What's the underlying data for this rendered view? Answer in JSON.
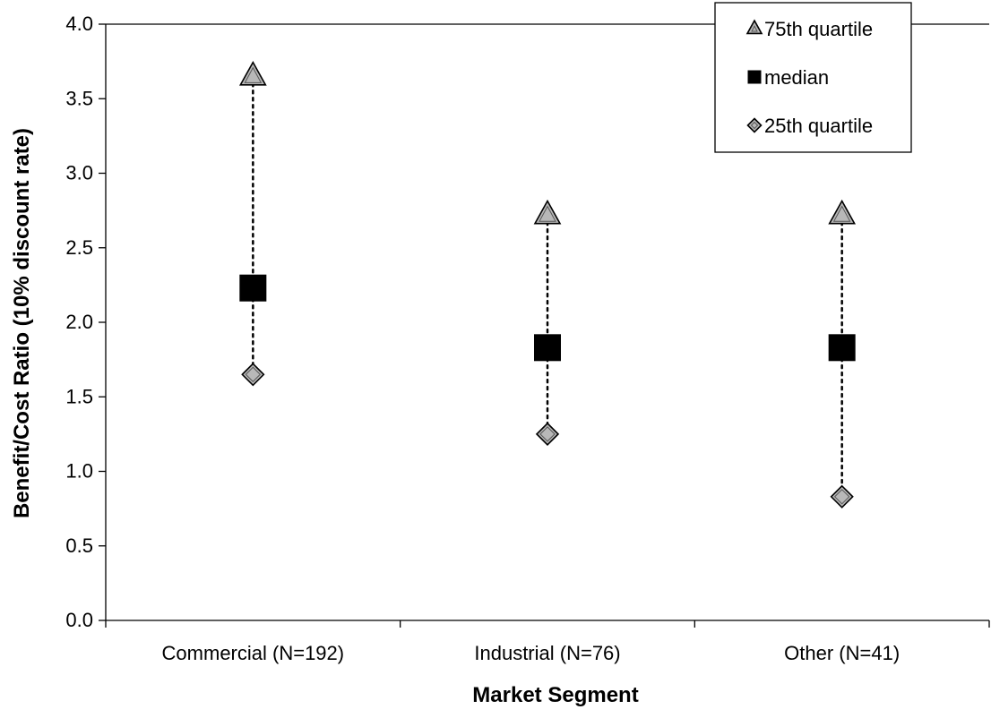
{
  "chart_data": {
    "type": "scatter",
    "xlabel": "Market Segment",
    "ylabel": "Benefit/Cost Ratio (10% discount rate)",
    "categories": [
      "Commercial (N=192)",
      "Industrial (N=76)",
      "Other (N=41)"
    ],
    "ylim": [
      0,
      4.0
    ],
    "yticks": [
      "0.0",
      "0.5",
      "1.0",
      "1.5",
      "2.0",
      "2.5",
      "3.0",
      "3.5",
      "4.0"
    ],
    "grid": false,
    "legend_position": "top-right",
    "series": [
      {
        "name": "75th quartile",
        "marker": "triangle",
        "values": [
          3.65,
          2.72,
          2.72
        ]
      },
      {
        "name": "median",
        "marker": "square",
        "values": [
          2.23,
          1.83,
          1.83
        ]
      },
      {
        "name": "25th quartile",
        "marker": "diamond",
        "values": [
          1.65,
          1.25,
          0.83
        ]
      }
    ],
    "range_lines": "dotted vertical line from 25th to 75th quartile",
    "colors": {
      "triangle_fill": "#b8b8b8",
      "square_fill": "#000000",
      "diamond_fill": "#b8b8b8",
      "axis": "#000000"
    }
  }
}
